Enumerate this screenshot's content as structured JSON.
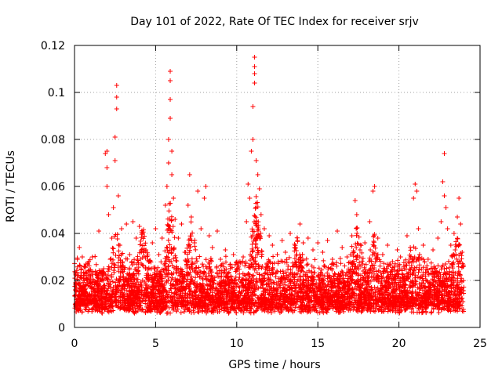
{
  "chart_data": {
    "type": "scatter",
    "title": "Day 101 of 2022, Rate Of TEC Index for receiver srjv",
    "xlabel": "GPS time / hours",
    "ylabel": "ROTI / TECUs",
    "xlim": [
      0,
      25
    ],
    "ylim": [
      0,
      0.12
    ],
    "x_ticks": [
      0,
      5,
      10,
      15,
      20,
      25
    ],
    "y_ticks": [
      0,
      0.02,
      0.04,
      0.06,
      0.08,
      0.1,
      0.12
    ],
    "x_tick_labels": [
      "0",
      "5",
      "10",
      "15",
      "20",
      "25"
    ],
    "y_tick_labels": [
      "0",
      "0.02",
      "0.04",
      "0.06",
      "0.08",
      "0.1",
      "0.12"
    ],
    "grid": true,
    "marker": "+",
    "color": "#ff0000",
    "series": [
      {
        "name": "ROTI",
        "points": [
          [
            0.1,
            0.018
          ],
          [
            0.2,
            0.012
          ],
          [
            0.3,
            0.034
          ],
          [
            0.4,
            0.021
          ],
          [
            0.5,
            0.015
          ],
          [
            0.7,
            0.027
          ],
          [
            0.9,
            0.011
          ],
          [
            1.0,
            0.019
          ],
          [
            1.1,
            0.03
          ],
          [
            1.3,
            0.014
          ],
          [
            1.4,
            0.022
          ],
          [
            1.5,
            0.041
          ],
          [
            1.6,
            0.017
          ],
          [
            1.8,
            0.025
          ],
          [
            1.9,
            0.074
          ],
          [
            2.0,
            0.075
          ],
          [
            2.0,
            0.068
          ],
          [
            2.0,
            0.06
          ],
          [
            2.1,
            0.048
          ],
          [
            2.2,
            0.029
          ],
          [
            2.3,
            0.038
          ],
          [
            2.4,
            0.051
          ],
          [
            2.5,
            0.071
          ],
          [
            2.5,
            0.081
          ],
          [
            2.6,
            0.093
          ],
          [
            2.6,
            0.098
          ],
          [
            2.6,
            0.103
          ],
          [
            2.7,
            0.056
          ],
          [
            2.8,
            0.035
          ],
          [
            2.9,
            0.042
          ],
          [
            3.0,
            0.026
          ],
          [
            3.2,
            0.044
          ],
          [
            3.4,
            0.031
          ],
          [
            3.6,
            0.045
          ],
          [
            3.8,
            0.038
          ],
          [
            4.0,
            0.043
          ],
          [
            4.2,
            0.04
          ],
          [
            4.4,
            0.033
          ],
          [
            4.6,
            0.028
          ],
          [
            4.8,
            0.036
          ],
          [
            5.0,
            0.042
          ],
          [
            5.2,
            0.031
          ],
          [
            5.4,
            0.038
          ],
          [
            5.6,
            0.052
          ],
          [
            5.7,
            0.06
          ],
          [
            5.8,
            0.07
          ],
          [
            5.8,
            0.08
          ],
          [
            5.9,
            0.089
          ],
          [
            5.9,
            0.097
          ],
          [
            5.9,
            0.105
          ],
          [
            5.9,
            0.109
          ],
          [
            6.0,
            0.075
          ],
          [
            6.0,
            0.065
          ],
          [
            6.1,
            0.055
          ],
          [
            6.2,
            0.046
          ],
          [
            6.4,
            0.038
          ],
          [
            6.6,
            0.044
          ],
          [
            6.8,
            0.032
          ],
          [
            7.0,
            0.052
          ],
          [
            7.1,
            0.065
          ],
          [
            7.2,
            0.047
          ],
          [
            7.4,
            0.036
          ],
          [
            7.6,
            0.058
          ],
          [
            7.8,
            0.042
          ],
          [
            8.0,
            0.055
          ],
          [
            8.1,
            0.06
          ],
          [
            8.3,
            0.039
          ],
          [
            8.5,
            0.034
          ],
          [
            8.8,
            0.041
          ],
          [
            9.0,
            0.029
          ],
          [
            9.3,
            0.033
          ],
          [
            9.6,
            0.026
          ],
          [
            9.8,
            0.031
          ],
          [
            10.0,
            0.024
          ],
          [
            10.2,
            0.028
          ],
          [
            10.4,
            0.03
          ],
          [
            10.6,
            0.045
          ],
          [
            10.7,
            0.061
          ],
          [
            10.8,
            0.055
          ],
          [
            10.9,
            0.075
          ],
          [
            11.0,
            0.08
          ],
          [
            11.0,
            0.094
          ],
          [
            11.1,
            0.104
          ],
          [
            11.1,
            0.108
          ],
          [
            11.1,
            0.111
          ],
          [
            11.1,
            0.115
          ],
          [
            11.2,
            0.071
          ],
          [
            11.3,
            0.065
          ],
          [
            11.4,
            0.059
          ],
          [
            11.5,
            0.048
          ],
          [
            11.7,
            0.042
          ],
          [
            12.0,
            0.039
          ],
          [
            12.2,
            0.035
          ],
          [
            12.5,
            0.031
          ],
          [
            12.8,
            0.037
          ],
          [
            13.0,
            0.032
          ],
          [
            13.3,
            0.04
          ],
          [
            13.6,
            0.034
          ],
          [
            13.9,
            0.044
          ],
          [
            14.1,
            0.036
          ],
          [
            14.4,
            0.038
          ],
          [
            14.7,
            0.033
          ],
          [
            15.0,
            0.036
          ],
          [
            15.3,
            0.032
          ],
          [
            15.6,
            0.037
          ],
          [
            15.9,
            0.029
          ],
          [
            16.2,
            0.041
          ],
          [
            16.5,
            0.034
          ],
          [
            16.8,
            0.03
          ],
          [
            17.1,
            0.039
          ],
          [
            17.3,
            0.054
          ],
          [
            17.4,
            0.048
          ],
          [
            17.6,
            0.033
          ],
          [
            17.9,
            0.036
          ],
          [
            18.2,
            0.045
          ],
          [
            18.4,
            0.058
          ],
          [
            18.5,
            0.06
          ],
          [
            18.7,
            0.038
          ],
          [
            19.0,
            0.031
          ],
          [
            19.3,
            0.035
          ],
          [
            19.6,
            0.028
          ],
          [
            19.9,
            0.033
          ],
          [
            20.1,
            0.03
          ],
          [
            20.3,
            0.026
          ],
          [
            20.5,
            0.039
          ],
          [
            20.7,
            0.034
          ],
          [
            20.9,
            0.055
          ],
          [
            21.0,
            0.061
          ],
          [
            21.1,
            0.058
          ],
          [
            21.2,
            0.042
          ],
          [
            21.5,
            0.035
          ],
          [
            21.8,
            0.029
          ],
          [
            22.1,
            0.033
          ],
          [
            22.4,
            0.038
          ],
          [
            22.6,
            0.045
          ],
          [
            22.7,
            0.062
          ],
          [
            22.8,
            0.074
          ],
          [
            22.8,
            0.056
          ],
          [
            22.9,
            0.051
          ],
          [
            23.0,
            0.042
          ],
          [
            23.2,
            0.035
          ],
          [
            23.4,
            0.04
          ],
          [
            23.6,
            0.047
          ],
          [
            23.7,
            0.055
          ],
          [
            23.8,
            0.044
          ],
          [
            23.9,
            0.032
          ]
        ]
      }
    ],
    "band": {
      "description": "dense cloud of ROTI measurements near the baseline",
      "x_range": [
        0,
        24
      ],
      "y_min_typical": [
        0.006,
        0.011
      ],
      "y_max_typical": [
        0.02,
        0.031
      ],
      "events": [
        {
          "x": 2.6,
          "y_top": 0.044
        },
        {
          "x": 4.2,
          "y_top": 0.044
        },
        {
          "x": 5.9,
          "y_top": 0.058
        },
        {
          "x": 7.2,
          "y_top": 0.046
        },
        {
          "x": 11.2,
          "y_top": 0.058
        },
        {
          "x": 13.7,
          "y_top": 0.04
        },
        {
          "x": 17.4,
          "y_top": 0.045
        },
        {
          "x": 18.5,
          "y_top": 0.042
        },
        {
          "x": 21.0,
          "y_top": 0.038
        },
        {
          "x": 23.6,
          "y_top": 0.04
        }
      ]
    }
  }
}
